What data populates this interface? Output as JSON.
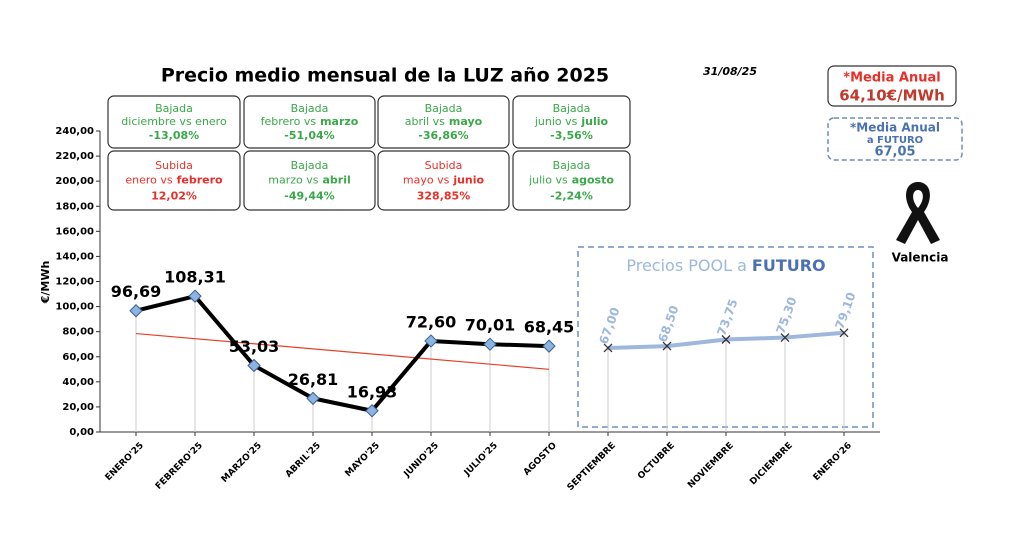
{
  "chart_data": {
    "type": "line",
    "title": "Precio medio mensual de la LUZ año 2025",
    "date": "31/08/25",
    "y_label": "€/MWh",
    "categories": [
      "ENERO'25",
      "FEBRERO'25",
      "MARZO'25",
      "ABRIL'25",
      "MAYO'25",
      "JUNIO'25",
      "JULIO'25",
      "AGOSTO",
      "SEPTIEMBRE",
      "OCTUBRE",
      "NOVIEMBRE",
      "DICIEMBRE",
      "ENERO'26"
    ],
    "ylim": [
      0,
      240
    ],
    "yticks": [
      {
        "value": 0,
        "label": "0,00"
      },
      {
        "value": 20,
        "label": "20,00"
      },
      {
        "value": 40,
        "label": "40,00"
      },
      {
        "value": 60,
        "label": "60,00"
      },
      {
        "value": 80,
        "label": "80,00"
      },
      {
        "value": 100,
        "label": "100,00"
      },
      {
        "value": 120,
        "label": "120,00"
      },
      {
        "value": 140,
        "label": "140,00"
      },
      {
        "value": 160,
        "label": "160,00"
      },
      {
        "value": 180,
        "label": "180,00"
      },
      {
        "value": 200,
        "label": "200,00"
      },
      {
        "value": 220,
        "label": "220,00"
      },
      {
        "value": 240,
        "label": "240,00"
      }
    ],
    "series": [
      {
        "color": "#000000",
        "marker_color": "#8db3e2",
        "values": [
          96.69,
          108.31,
          53.03,
          26.81,
          16.93,
          72.6,
          70.01,
          68.45,
          null,
          null,
          null,
          null,
          null
        ],
        "value_labels": [
          "96,69",
          "108,31",
          "53,03",
          "26,81",
          "16,93",
          "72,60",
          "70,01",
          "68,45",
          null,
          null,
          null,
          null,
          null
        ]
      },
      {
        "color": "#9db8dc",
        "marker_color": "#333333",
        "values": [
          null,
          null,
          null,
          null,
          null,
          null,
          null,
          null,
          67.0,
          68.5,
          73.75,
          75.3,
          79.1
        ],
        "value_labels": [
          null,
          null,
          null,
          null,
          null,
          null,
          null,
          null,
          "67,00",
          "68,50",
          "73,75",
          "75,30",
          "79,10"
        ]
      }
    ],
    "trendline": {
      "color": "#e8402a",
      "values": [
        78.5,
        50
      ]
    },
    "future_box": {
      "title": "Precios POOL a",
      "bold": "FUTURO"
    },
    "comparisons": [
      {
        "label": "Bajada",
        "color": "#3aa84a",
        "text": "diciembre vs enero",
        "change": "-13,08%"
      },
      {
        "label": "Bajada",
        "color": "#3aa84a",
        "text": "febrero vs",
        "bold": "marzo",
        "change": "-51,04%"
      },
      {
        "label": "Bajada",
        "color": "#3aa84a",
        "text": "abril vs",
        "bold": "mayo",
        "change": "-36,86%"
      },
      {
        "label": "Bajada",
        "color": "#3aa84a",
        "text": "junio vs",
        "bold": "julio",
        "change": "-3,56%"
      },
      {
        "label": "Subida",
        "color": "#e8302a",
        "text": "enero vs",
        "bold": "febrero",
        "change": "12,02%"
      },
      {
        "label": "Bajada",
        "color": "#3aa84a",
        "text": "marzo vs",
        "bold": "abril",
        "change": "-49,44%"
      },
      {
        "label": "Subida",
        "color": "#e8302a",
        "text": "mayo vs",
        "bold": "junio",
        "change": "328,85%"
      },
      {
        "label": "Bajada",
        "color": "#3aa84a",
        "text": "julio vs",
        "bold": "agosto",
        "change": "-2,24%"
      }
    ],
    "annual_average": {
      "title": "*Media Anual",
      "value": "64,10€/MWh"
    },
    "future_average": {
      "title": "*Media Anual",
      "subtitle": "a FUTURO",
      "value": "67,05"
    },
    "location": "Valencia"
  }
}
